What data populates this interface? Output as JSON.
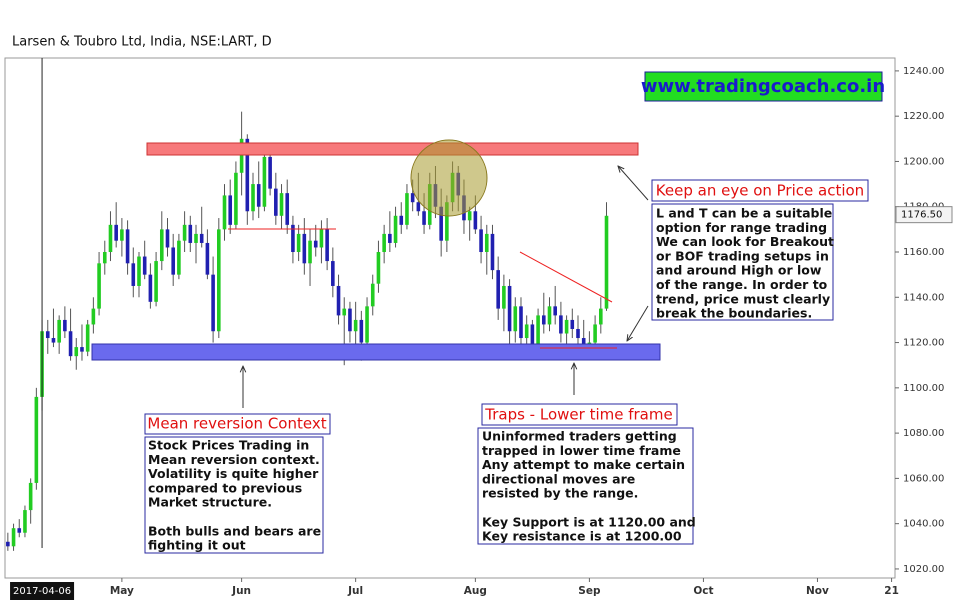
{
  "chart_data": {
    "type": "candlestick",
    "title": "Larsen & Toubro Ltd, India, NSE:LART, D",
    "up_color": "#22cc22",
    "down_color": "#2020b0",
    "ohlc": [
      [
        1032,
        1036,
        1028,
        1030
      ],
      [
        1030,
        1040,
        1028,
        1038
      ],
      [
        1038,
        1042,
        1034,
        1036
      ],
      [
        1036,
        1048,
        1034,
        1046
      ],
      [
        1046,
        1060,
        1040,
        1058
      ],
      [
        1058,
        1100,
        1055,
        1096
      ],
      [
        1096,
        1130,
        1090,
        1125
      ],
      [
        1125,
        1130,
        1115,
        1122
      ],
      [
        1122,
        1135,
        1118,
        1120
      ],
      [
        1120,
        1132,
        1115,
        1130
      ],
      [
        1130,
        1136,
        1122,
        1125
      ],
      [
        1125,
        1135,
        1112,
        1114
      ],
      [
        1114,
        1122,
        1108,
        1118
      ],
      [
        1118,
        1128,
        1112,
        1116
      ],
      [
        1116,
        1130,
        1114,
        1128
      ],
      [
        1128,
        1140,
        1124,
        1135
      ],
      [
        1135,
        1160,
        1132,
        1155
      ],
      [
        1155,
        1165,
        1150,
        1160
      ],
      [
        1160,
        1178,
        1156,
        1172
      ],
      [
        1172,
        1182,
        1162,
        1165
      ],
      [
        1165,
        1175,
        1158,
        1170
      ],
      [
        1170,
        1174,
        1150,
        1155
      ],
      [
        1155,
        1162,
        1140,
        1145
      ],
      [
        1145,
        1160,
        1140,
        1158
      ],
      [
        1158,
        1165,
        1148,
        1150
      ],
      [
        1150,
        1155,
        1135,
        1138
      ],
      [
        1138,
        1160,
        1136,
        1156
      ],
      [
        1156,
        1178,
        1152,
        1170
      ],
      [
        1170,
        1175,
        1158,
        1162
      ],
      [
        1162,
        1168,
        1145,
        1150
      ],
      [
        1150,
        1168,
        1148,
        1165
      ],
      [
        1165,
        1178,
        1160,
        1172
      ],
      [
        1172,
        1176,
        1160,
        1164
      ],
      [
        1164,
        1172,
        1155,
        1168
      ],
      [
        1168,
        1180,
        1162,
        1164
      ],
      [
        1164,
        1170,
        1148,
        1150
      ],
      [
        1150,
        1158,
        1120,
        1125
      ],
      [
        1125,
        1175,
        1122,
        1170
      ],
      [
        1170,
        1190,
        1165,
        1185
      ],
      [
        1185,
        1192,
        1168,
        1172
      ],
      [
        1172,
        1200,
        1170,
        1195
      ],
      [
        1195,
        1222,
        1185,
        1210
      ],
      [
        1210,
        1212,
        1172,
        1178
      ],
      [
        1178,
        1195,
        1174,
        1190
      ],
      [
        1190,
        1200,
        1175,
        1180
      ],
      [
        1180,
        1205,
        1178,
        1202
      ],
      [
        1202,
        1206,
        1185,
        1188
      ],
      [
        1188,
        1195,
        1172,
        1176
      ],
      [
        1176,
        1190,
        1170,
        1186
      ],
      [
        1186,
        1192,
        1168,
        1172
      ],
      [
        1172,
        1176,
        1155,
        1160
      ],
      [
        1160,
        1172,
        1156,
        1168
      ],
      [
        1168,
        1175,
        1150,
        1155
      ],
      [
        1155,
        1170,
        1145,
        1165
      ],
      [
        1165,
        1172,
        1158,
        1162
      ],
      [
        1162,
        1174,
        1155,
        1170
      ],
      [
        1170,
        1175,
        1152,
        1156
      ],
      [
        1156,
        1162,
        1140,
        1145
      ],
      [
        1145,
        1150,
        1128,
        1132
      ],
      [
        1132,
        1140,
        1110,
        1135
      ],
      [
        1135,
        1138,
        1120,
        1125
      ],
      [
        1125,
        1138,
        1118,
        1130
      ],
      [
        1130,
        1134,
        1112,
        1120
      ],
      [
        1120,
        1140,
        1118,
        1136
      ],
      [
        1136,
        1150,
        1132,
        1146
      ],
      [
        1146,
        1165,
        1142,
        1160
      ],
      [
        1160,
        1172,
        1155,
        1168
      ],
      [
        1168,
        1178,
        1160,
        1164
      ],
      [
        1164,
        1180,
        1162,
        1176
      ],
      [
        1176,
        1182,
        1168,
        1172
      ],
      [
        1172,
        1190,
        1170,
        1186
      ],
      [
        1186,
        1192,
        1178,
        1182
      ],
      [
        1182,
        1195,
        1176,
        1178
      ],
      [
        1178,
        1186,
        1168,
        1172
      ],
      [
        1172,
        1195,
        1170,
        1190
      ],
      [
        1190,
        1198,
        1175,
        1180
      ],
      [
        1180,
        1188,
        1158,
        1165
      ],
      [
        1165,
        1185,
        1160,
        1182
      ],
      [
        1182,
        1200,
        1178,
        1195
      ],
      [
        1195,
        1198,
        1178,
        1185
      ],
      [
        1185,
        1192,
        1168,
        1174
      ],
      [
        1174,
        1180,
        1165,
        1178
      ],
      [
        1178,
        1185,
        1168,
        1170
      ],
      [
        1170,
        1176,
        1155,
        1160
      ],
      [
        1160,
        1172,
        1150,
        1168
      ],
      [
        1168,
        1172,
        1148,
        1152
      ],
      [
        1152,
        1158,
        1130,
        1135
      ],
      [
        1135,
        1150,
        1125,
        1145
      ],
      [
        1145,
        1148,
        1118,
        1125
      ],
      [
        1125,
        1140,
        1120,
        1136
      ],
      [
        1136,
        1140,
        1118,
        1122
      ],
      [
        1122,
        1132,
        1115,
        1128
      ],
      [
        1128,
        1130,
        1114,
        1118
      ],
      [
        1118,
        1135,
        1116,
        1132
      ],
      [
        1132,
        1142,
        1124,
        1128
      ],
      [
        1128,
        1140,
        1125,
        1136
      ],
      [
        1136,
        1145,
        1128,
        1132
      ],
      [
        1132,
        1138,
        1120,
        1124
      ],
      [
        1124,
        1132,
        1118,
        1130
      ],
      [
        1130,
        1135,
        1122,
        1126
      ],
      [
        1126,
        1132,
        1118,
        1122
      ],
      [
        1122,
        1130,
        1116,
        1118
      ],
      [
        1118,
        1125,
        1114,
        1120
      ],
      [
        1120,
        1132,
        1118,
        1128
      ],
      [
        1128,
        1140,
        1124,
        1135
      ],
      [
        1135,
        1182,
        1134,
        1176
      ]
    ],
    "xlim": [
      -0.5,
      155.6
    ],
    "xticks": [
      {
        "value": 20,
        "label": "May"
      },
      {
        "value": 41,
        "label": "Jun"
      },
      {
        "value": 61,
        "label": "Jul"
      },
      {
        "value": 82,
        "label": "Aug"
      },
      {
        "value": 102,
        "label": "Sep"
      },
      {
        "value": 122,
        "label": "Oct"
      },
      {
        "value": 142,
        "label": "Nov"
      },
      {
        "value": 155,
        "label": "21"
      }
    ],
    "cursor": {
      "value": 6,
      "label": "2017-04-06"
    },
    "ylim": [
      1016,
      1245.7
    ],
    "yticks": [
      {
        "value": 1020,
        "label": "1020.00"
      },
      {
        "value": 1040,
        "label": "1040.00"
      },
      {
        "value": 1060,
        "label": "1060.00"
      },
      {
        "value": 1080,
        "label": "1080.00"
      },
      {
        "value": 1100,
        "label": "1100.00"
      },
      {
        "value": 1120,
        "label": "1120.00"
      },
      {
        "value": 1140,
        "label": "1140.00"
      },
      {
        "value": 1160,
        "label": "1160.00"
      },
      {
        "value": 1180,
        "label": "1180.00"
      },
      {
        "value": 1200,
        "label": "1200.00"
      },
      {
        "value": 1220,
        "label": "1220.00"
      },
      {
        "value": 1240,
        "label": "1240.00"
      }
    ],
    "last_price": {
      "value": 1176.5,
      "label": "1176.50"
    }
  },
  "annotations": {
    "website": "www.tradingcoach.co.in",
    "price_action": {
      "title": "Keep an eye on Price action",
      "lines": [
        "L and T can be a suitable",
        "option for range trading",
        "We can look for Breakout",
        "or BOF trading setups in",
        "and around High or low",
        "of the range. In order to",
        "trend, price must clearly",
        "break the boundaries."
      ]
    },
    "mean_reversion": {
      "title": "Mean reversion Context",
      "lines": [
        "Stock Prices Trading in",
        "Mean reversion context.",
        "Volatility is quite higher",
        "compared to previous",
        "Market structure."
      ],
      "lines2": [
        "Both bulls and bears are",
        "fighting it out"
      ]
    },
    "traps": {
      "title": "Traps - Lower time frame",
      "lines": [
        "Uninformed traders getting",
        "trapped in lower time frame",
        "Any attempt to make certain",
        "directional moves are",
        "resisted by the range."
      ],
      "lines2": [
        "Key Support is at 1120.00 and",
        "Key resistance  is at 1200.00"
      ]
    }
  }
}
